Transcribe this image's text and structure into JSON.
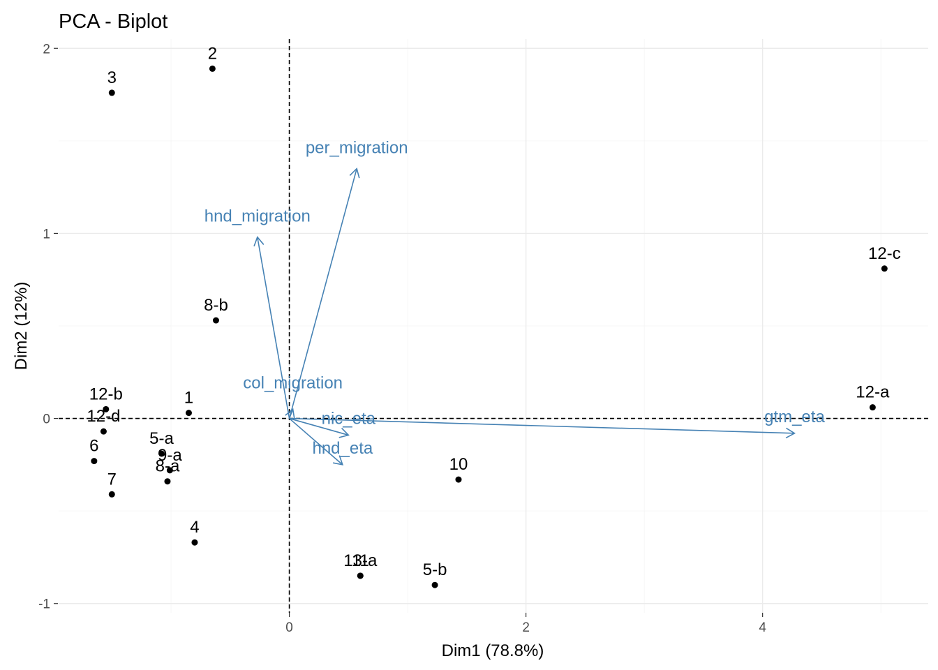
{
  "chart_data": {
    "type": "scatter",
    "title": "PCA - Biplot",
    "xlabel": "Dim1 (78.8%)",
    "ylabel": "Dim2 (12%)",
    "xlim": [
      -1.95,
      5.4
    ],
    "ylim": [
      -1.05,
      2.05
    ],
    "x_ticks": [
      0,
      2,
      4
    ],
    "y_ticks": [
      -1,
      0,
      1,
      2
    ],
    "x_minor_ticks": [
      -1,
      1,
      3,
      5
    ],
    "y_minor_ticks": [
      -0.5,
      0.5,
      1.5
    ],
    "grid": true,
    "reference_lines": {
      "x": 0,
      "y": 0
    },
    "colors": {
      "points": "#000000",
      "variables": "#4682B4"
    },
    "individuals": [
      {
        "label": "2",
        "x": -0.65,
        "y": 1.89
      },
      {
        "label": "3",
        "x": -1.5,
        "y": 1.76
      },
      {
        "label": "8-b",
        "x": -0.62,
        "y": 0.53
      },
      {
        "label": "12-b",
        "x": -1.55,
        "y": 0.05
      },
      {
        "label": "12-d",
        "x": -1.57,
        "y": -0.07
      },
      {
        "label": "1",
        "x": -0.85,
        "y": 0.03
      },
      {
        "label": "6",
        "x": -1.65,
        "y": -0.23
      },
      {
        "label": "5-a",
        "x": -1.08,
        "y": -0.19
      },
      {
        "label": "9-a",
        "x": -1.01,
        "y": -0.28
      },
      {
        "label": "8-a",
        "x": -1.03,
        "y": -0.34
      },
      {
        "label": "7",
        "x": -1.5,
        "y": -0.41
      },
      {
        "label": "4",
        "x": -0.8,
        "y": -0.67
      },
      {
        "label": "11",
        "x": 0.6,
        "y": -0.85
      },
      {
        "label": "13-a",
        "x": 0.6,
        "y": -0.85
      },
      {
        "label": "5-b",
        "x": 1.23,
        "y": -0.9
      },
      {
        "label": "10",
        "x": 1.43,
        "y": -0.33
      },
      {
        "label": "12-c",
        "x": 5.03,
        "y": 0.81
      },
      {
        "label": "12-a",
        "x": 4.93,
        "y": 0.06
      }
    ],
    "variables": [
      {
        "name": "per_migration",
        "x": 0.57,
        "y": 1.35
      },
      {
        "name": "hnd_migration",
        "x": -0.27,
        "y": 0.98
      },
      {
        "name": "col_migration",
        "x": 0.03,
        "y": 0.05
      },
      {
        "name": "nic_eta",
        "x": 0.5,
        "y": -0.09
      },
      {
        "name": "hnd_eta",
        "x": 0.45,
        "y": -0.25
      },
      {
        "name": "gtm_eta",
        "x": 4.27,
        "y": -0.08
      }
    ]
  }
}
